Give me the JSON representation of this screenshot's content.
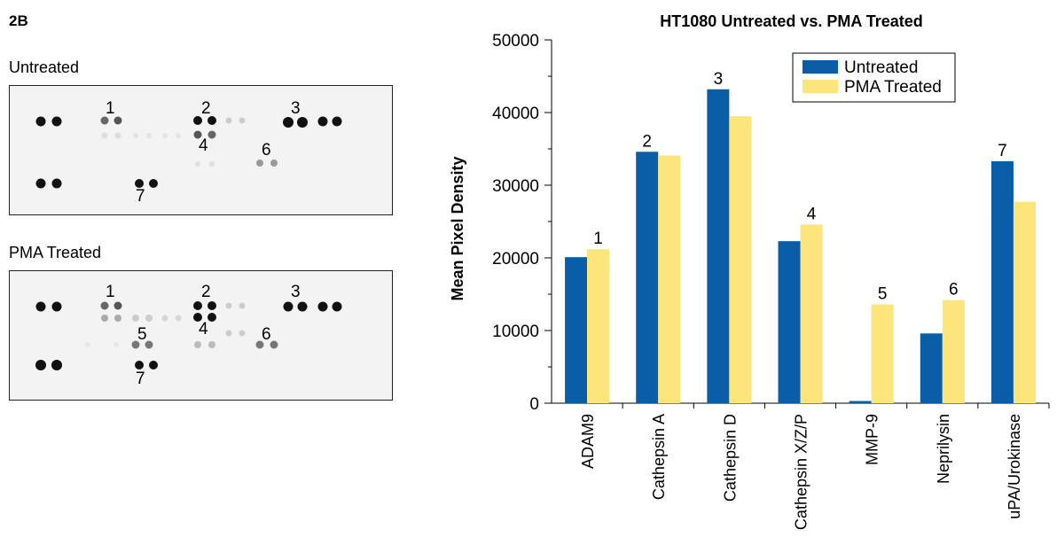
{
  "figure_label": "2B",
  "blots": [
    {
      "title": "Untreated",
      "labels": [
        "1",
        "2",
        "3",
        "4",
        "6",
        "7"
      ]
    },
    {
      "title": "PMA Treated",
      "labels": [
        "1",
        "2",
        "3",
        "5",
        "4",
        "6",
        "7"
      ]
    }
  ],
  "chart_data": {
    "type": "bar",
    "title": "HT1080 Untreated vs. PMA Treated",
    "ylabel": "Mean Pixel Density",
    "xlabel": "",
    "ylim": [
      0,
      50000
    ],
    "yticks": [
      0,
      10000,
      20000,
      30000,
      40000,
      50000
    ],
    "categories": [
      "ADAM9",
      "Cathepsin A",
      "Cathepsin D",
      "Cathepsin X/Z/P",
      "MMP-9",
      "Neprilysin",
      "uPA/Urokinase"
    ],
    "bar_labels": [
      "1",
      "2",
      "3",
      "4",
      "5",
      "6",
      "7"
    ],
    "series": [
      {
        "name": "Untreated",
        "color": "#0a5ea8",
        "values": [
          20100,
          34600,
          43200,
          22300,
          300,
          9600,
          33300
        ]
      },
      {
        "name": "PMA Treated",
        "color": "#fce57a",
        "values": [
          21200,
          34100,
          39500,
          24600,
          13600,
          14200,
          27700
        ]
      }
    ],
    "legend_position": "top-right",
    "grid": false
  }
}
